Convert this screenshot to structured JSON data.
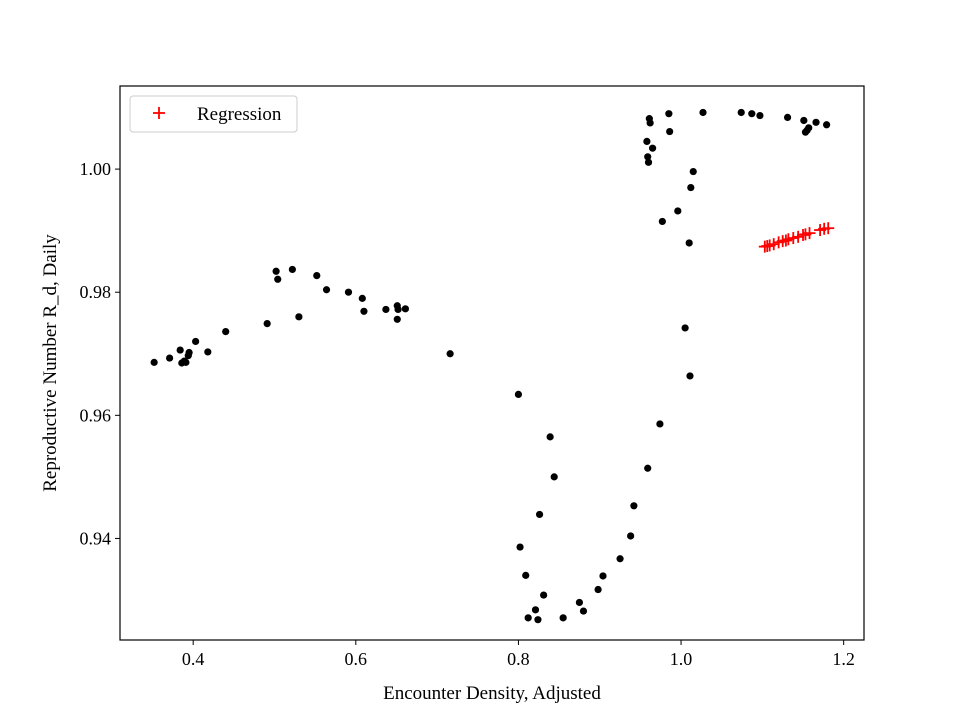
{
  "chart_data": {
    "type": "scatter",
    "title": "",
    "xlabel": "Encounter Density, Adjusted",
    "ylabel": "Reproductive Number R_d, Daily",
    "xlim": [
      0.31,
      1.225
    ],
    "ylim": [
      0.9235,
      1.0135
    ],
    "xticks": [
      0.4,
      0.6,
      0.8,
      1.0,
      1.2
    ],
    "xtick_labels": [
      "0.4",
      "0.6",
      "0.8",
      "1.0",
      "1.2"
    ],
    "yticks": [
      0.94,
      0.96,
      0.98,
      1.0
    ],
    "ytick_labels": [
      "0.94",
      "0.96",
      "0.98",
      "1.00"
    ],
    "grid": false,
    "legend": {
      "placement": "top-left",
      "entries": [
        "Regression"
      ]
    },
    "series": [
      {
        "marker": "dot",
        "color": "#000000",
        "points": [
          [
            0.352,
            0.9686
          ],
          [
            0.371,
            0.9693
          ],
          [
            0.384,
            0.9706
          ],
          [
            0.386,
            0.9685
          ],
          [
            0.389,
            0.9688
          ],
          [
            0.391,
            0.9686
          ],
          [
            0.394,
            0.9697
          ],
          [
            0.395,
            0.9702
          ],
          [
            0.403,
            0.972
          ],
          [
            0.418,
            0.9703
          ],
          [
            0.44,
            0.9736
          ],
          [
            0.491,
            0.9749
          ],
          [
            0.502,
            0.9834
          ],
          [
            0.504,
            0.9821
          ],
          [
            0.522,
            0.9837
          ],
          [
            0.53,
            0.976
          ],
          [
            0.552,
            0.9827
          ],
          [
            0.564,
            0.9804
          ],
          [
            0.591,
            0.98
          ],
          [
            0.608,
            0.979
          ],
          [
            0.61,
            0.9769
          ],
          [
            0.637,
            0.9772
          ],
          [
            0.651,
            0.9756
          ],
          [
            0.651,
            0.9778
          ],
          [
            0.652,
            0.9772
          ],
          [
            0.661,
            0.9773
          ],
          [
            0.716,
            0.97
          ],
          [
            0.8,
            0.9634
          ],
          [
            0.802,
            0.9386
          ],
          [
            0.809,
            0.934
          ],
          [
            0.812,
            0.9271
          ],
          [
            0.821,
            0.9284
          ],
          [
            0.824,
            0.9268
          ],
          [
            0.826,
            0.9439
          ],
          [
            0.831,
            0.9308
          ],
          [
            0.839,
            0.9565
          ],
          [
            0.844,
            0.95
          ],
          [
            0.855,
            0.9271
          ],
          [
            0.875,
            0.9296
          ],
          [
            0.88,
            0.9282
          ],
          [
            0.898,
            0.9317
          ],
          [
            0.904,
            0.9339
          ],
          [
            0.925,
            0.9367
          ],
          [
            0.938,
            0.9404
          ],
          [
            0.942,
            0.9453
          ],
          [
            0.958,
            1.0045
          ],
          [
            0.959,
            0.9514
          ],
          [
            0.959,
            1.002
          ],
          [
            0.96,
            1.0011
          ],
          [
            0.961,
            1.0082
          ],
          [
            0.962,
            1.0075
          ],
          [
            0.965,
            1.0034
          ],
          [
            0.974,
            0.9586
          ],
          [
            0.977,
            0.9915
          ],
          [
            0.985,
            1.009
          ],
          [
            0.986,
            1.0061
          ],
          [
            0.996,
            0.9932
          ],
          [
            1.005,
            0.9742
          ],
          [
            1.01,
            0.988
          ],
          [
            1.011,
            0.9664
          ],
          [
            1.012,
            0.997
          ],
          [
            1.015,
            0.9996
          ],
          [
            1.027,
            1.0092
          ],
          [
            1.074,
            1.0092
          ],
          [
            1.087,
            1.009
          ],
          [
            1.097,
            1.0087
          ],
          [
            1.131,
            1.0084
          ],
          [
            1.151,
            1.0079
          ],
          [
            1.153,
            1.006
          ],
          [
            1.155,
            1.0063
          ],
          [
            1.157,
            1.0067
          ],
          [
            1.166,
            1.0076
          ],
          [
            1.179,
            1.0072
          ]
        ]
      },
      {
        "name": "Regression",
        "marker": "plus",
        "color": "#ff0000",
        "points": [
          [
            1.103,
            0.9874
          ],
          [
            1.106,
            0.9875
          ],
          [
            1.109,
            0.9876
          ],
          [
            1.114,
            0.9878
          ],
          [
            1.12,
            0.9881
          ],
          [
            1.125,
            0.9883
          ],
          [
            1.129,
            0.9884
          ],
          [
            1.132,
            0.9886
          ],
          [
            1.138,
            0.9888
          ],
          [
            1.144,
            0.989
          ],
          [
            1.15,
            0.9893
          ],
          [
            1.153,
            0.9894
          ],
          [
            1.158,
            0.9896
          ],
          [
            1.171,
            0.9901
          ],
          [
            1.176,
            0.9903
          ],
          [
            1.181,
            0.9904
          ]
        ]
      }
    ]
  }
}
